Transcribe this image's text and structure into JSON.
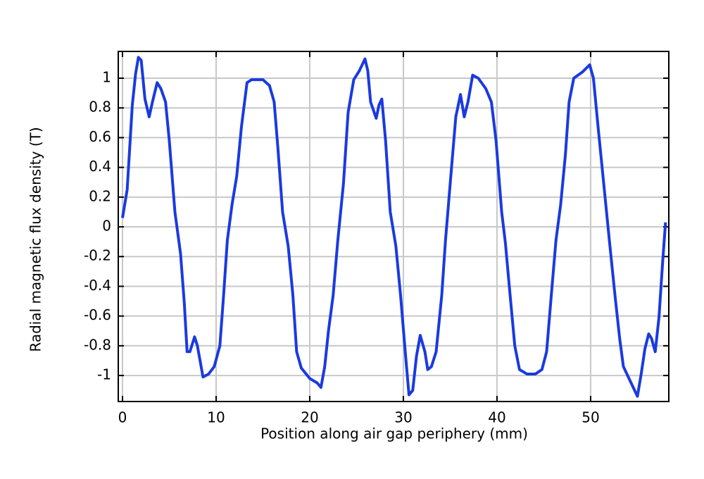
{
  "chart_data": {
    "type": "line",
    "xlabel": "Position along air gap periphery (mm)",
    "ylabel": "Radial magnetic flux density (T)",
    "xlim": [
      -0.45,
      58.35
    ],
    "ylim": [
      -1.175,
      1.18
    ],
    "xticks": [
      0,
      10,
      20,
      30,
      40,
      50
    ],
    "yticks": [
      -1,
      -0.8,
      -0.6,
      -0.4,
      -0.2,
      0,
      0.2,
      0.4,
      0.6,
      0.8,
      1
    ],
    "grid": true,
    "x": [
      0,
      0.5,
      1.05,
      1.4,
      1.7,
      2.0,
      2.4,
      2.85,
      3.2,
      3.7,
      4.1,
      4.6,
      5.0,
      5.6,
      6.2,
      6.6,
      6.9,
      7.2,
      7.7,
      8.0,
      8.6,
      9.2,
      9.8,
      10.4,
      10.8,
      11.2,
      11.7,
      12.2,
      12.7,
      13.3,
      13.8,
      15.0,
      15.7,
      16.2,
      16.6,
      17.1,
      17.7,
      18.2,
      18.6,
      19.1,
      20.0,
      20.8,
      21.2,
      21.6,
      22.0,
      22.5,
      23.0,
      23.6,
      24.1,
      24.7,
      25.3,
      25.9,
      26.2,
      26.5,
      27.1,
      27.4,
      27.7,
      28.1,
      28.6,
      29.2,
      29.7,
      30.2,
      30.6,
      31.0,
      31.4,
      31.8,
      32.3,
      32.6,
      33.0,
      33.5,
      34.1,
      34.5,
      35.0,
      35.6,
      36.1,
      36.5,
      36.9,
      37.4,
      38.0,
      38.8,
      39.4,
      39.9,
      40.5,
      40.9,
      41.4,
      41.9,
      42.4,
      43.2,
      44.1,
      44.8,
      45.3,
      45.8,
      46.3,
      46.8,
      47.3,
      47.7,
      48.2,
      49.1,
      49.9,
      50.3,
      50.8,
      51.4,
      52.0,
      52.6,
      53.1,
      53.5,
      54.4,
      55.0,
      55.4,
      55.8,
      56.2,
      56.5,
      56.9,
      57.3,
      57.7,
      58.0
    ],
    "series": [
      {
        "color": "#1a3ae0",
        "values": [
          0.06,
          0.25,
          0.82,
          1.03,
          1.14,
          1.12,
          0.86,
          0.74,
          0.84,
          0.97,
          0.93,
          0.84,
          0.58,
          0.1,
          -0.18,
          -0.51,
          -0.84,
          -0.84,
          -0.74,
          -0.8,
          -1.01,
          -0.99,
          -0.94,
          -0.8,
          -0.46,
          -0.09,
          0.15,
          0.34,
          0.67,
          0.97,
          0.99,
          0.99,
          0.95,
          0.84,
          0.53,
          0.1,
          -0.13,
          -0.46,
          -0.84,
          -0.95,
          -1.02,
          -1.05,
          -1.08,
          -0.94,
          -0.7,
          -0.46,
          -0.09,
          0.29,
          0.77,
          0.99,
          1.05,
          1.13,
          1.05,
          0.84,
          0.73,
          0.82,
          0.86,
          0.58,
          0.1,
          -0.13,
          -0.46,
          -0.84,
          -1.13,
          -1.1,
          -0.87,
          -0.73,
          -0.84,
          -0.96,
          -0.94,
          -0.84,
          -0.46,
          -0.09,
          0.29,
          0.74,
          0.89,
          0.74,
          0.84,
          1.02,
          1.0,
          0.93,
          0.84,
          0.58,
          0.1,
          -0.11,
          -0.46,
          -0.8,
          -0.96,
          -0.99,
          -0.99,
          -0.96,
          -0.84,
          -0.46,
          -0.09,
          0.15,
          0.48,
          0.84,
          1.0,
          1.04,
          1.09,
          1.0,
          0.67,
          0.29,
          -0.09,
          -0.46,
          -0.75,
          -0.94,
          -1.06,
          -1.14,
          -0.99,
          -0.82,
          -0.72,
          -0.75,
          -0.84,
          -0.61,
          -0.23,
          0.03
        ]
      }
    ]
  }
}
